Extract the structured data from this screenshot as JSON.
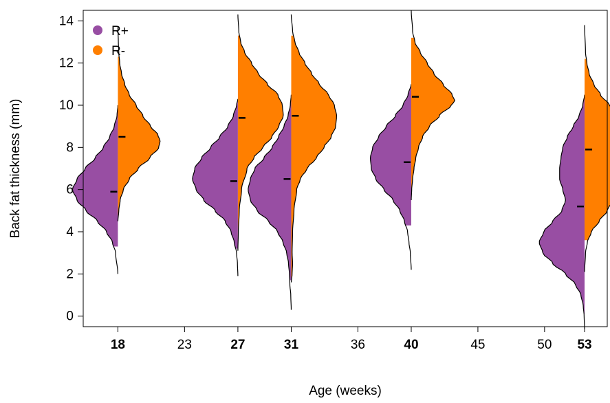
{
  "chart_data": {
    "type": "split-violin",
    "title": "",
    "xlabel": "Age (weeks)",
    "ylabel": "Back fat thickness (mm)",
    "xlim": [
      15.4,
      54.7
    ],
    "ylim": [
      -0.5,
      14.5
    ],
    "grid": false,
    "legend_position": "top-left",
    "x_ticks": [
      {
        "value": 18,
        "label": "18",
        "bold": true
      },
      {
        "value": 23,
        "label": "23",
        "bold": false
      },
      {
        "value": 27,
        "label": "27",
        "bold": true
      },
      {
        "value": 31,
        "label": "31",
        "bold": true
      },
      {
        "value": 36,
        "label": "36",
        "bold": false
      },
      {
        "value": 40,
        "label": "40",
        "bold": true
      },
      {
        "value": 45,
        "label": "45",
        "bold": false
      },
      {
        "value": 50,
        "label": "50",
        "bold": false
      },
      {
        "value": 53,
        "label": "53",
        "bold": true
      }
    ],
    "y_ticks": [
      0,
      2,
      4,
      6,
      8,
      10,
      12,
      14
    ],
    "series": [
      {
        "name": "R+",
        "color": "#984ea3",
        "side": "left"
      },
      {
        "name": "R-",
        "color": "#ff7f00",
        "side": "right"
      }
    ],
    "violins": [
      {
        "age": 18,
        "r_plus": {
          "mean": 5.9,
          "fill_range": [
            3.3,
            9.9
          ],
          "line_range": [
            2.0,
            10.0
          ],
          "density": [
            [
              2.0,
              0.0
            ],
            [
              3.0,
              0.05
            ],
            [
              3.5,
              0.12
            ],
            [
              4.0,
              0.25
            ],
            [
              4.5,
              0.45
            ],
            [
              5.0,
              0.7
            ],
            [
              5.5,
              0.9
            ],
            [
              6.0,
              1.0
            ],
            [
              6.5,
              0.9
            ],
            [
              7.0,
              0.72
            ],
            [
              7.5,
              0.5
            ],
            [
              8.0,
              0.32
            ],
            [
              8.5,
              0.18
            ],
            [
              9.0,
              0.08
            ],
            [
              9.5,
              0.02
            ],
            [
              10.0,
              0.0
            ]
          ]
        },
        "r_minus": {
          "mean": 8.5,
          "fill_range": [
            4.6,
            12.3
          ],
          "line_range": [
            4.5,
            13.7
          ],
          "density": [
            [
              4.5,
              0.0
            ],
            [
              5.0,
              0.02
            ],
            [
              5.5,
              0.05
            ],
            [
              6.0,
              0.12
            ],
            [
              6.5,
              0.25
            ],
            [
              7.0,
              0.45
            ],
            [
              7.5,
              0.7
            ],
            [
              8.0,
              0.9
            ],
            [
              8.3,
              0.93
            ],
            [
              8.6,
              0.88
            ],
            [
              9.0,
              0.72
            ],
            [
              9.5,
              0.55
            ],
            [
              10.0,
              0.4
            ],
            [
              10.5,
              0.25
            ],
            [
              11.0,
              0.15
            ],
            [
              11.5,
              0.08
            ],
            [
              12.0,
              0.04
            ],
            [
              12.5,
              0.02
            ],
            [
              13.0,
              0.01
            ],
            [
              13.7,
              0.0
            ]
          ]
        }
      },
      {
        "age": 27,
        "r_plus": {
          "mean": 6.4,
          "fill_range": [
            3.2,
            10.2
          ],
          "line_range": [
            1.9,
            10.3
          ],
          "density": [
            [
              1.9,
              0.0
            ],
            [
              2.5,
              0.01
            ],
            [
              3.0,
              0.03
            ],
            [
              3.5,
              0.08
            ],
            [
              4.0,
              0.15
            ],
            [
              4.5,
              0.28
            ],
            [
              5.0,
              0.5
            ],
            [
              5.5,
              0.75
            ],
            [
              6.0,
              0.92
            ],
            [
              6.5,
              1.0
            ],
            [
              7.0,
              0.95
            ],
            [
              7.5,
              0.8
            ],
            [
              8.0,
              0.6
            ],
            [
              8.5,
              0.4
            ],
            [
              9.0,
              0.22
            ],
            [
              9.5,
              0.1
            ],
            [
              10.0,
              0.03
            ],
            [
              10.3,
              0.0
            ]
          ]
        },
        "r_minus": {
          "mean": 9.4,
          "fill_range": [
            3.2,
            13.3
          ],
          "line_range": [
            3.1,
            14.3
          ],
          "density": [
            [
              3.1,
              0.0
            ],
            [
              4.0,
              0.01
            ],
            [
              5.0,
              0.03
            ],
            [
              6.0,
              0.08
            ],
            [
              7.0,
              0.2
            ],
            [
              7.5,
              0.35
            ],
            [
              8.0,
              0.55
            ],
            [
              8.5,
              0.75
            ],
            [
              9.0,
              0.9
            ],
            [
              9.5,
              1.0
            ],
            [
              10.0,
              0.98
            ],
            [
              10.5,
              0.88
            ],
            [
              11.0,
              0.65
            ],
            [
              11.5,
              0.45
            ],
            [
              12.0,
              0.3
            ],
            [
              12.5,
              0.15
            ],
            [
              13.0,
              0.06
            ],
            [
              13.5,
              0.02
            ],
            [
              14.3,
              0.0
            ]
          ]
        }
      },
      {
        "age": 31,
        "r_plus": {
          "mean": 6.5,
          "fill_range": [
            1.7,
            10.5
          ],
          "line_range": [
            0.3,
            10.5
          ],
          "density": [
            [
              0.3,
              0.0
            ],
            [
              1.0,
              0.01
            ],
            [
              1.5,
              0.03
            ],
            [
              2.0,
              0.04
            ],
            [
              2.5,
              0.06
            ],
            [
              3.0,
              0.1
            ],
            [
              3.5,
              0.18
            ],
            [
              4.0,
              0.3
            ],
            [
              4.5,
              0.5
            ],
            [
              5.0,
              0.75
            ],
            [
              5.5,
              0.9
            ],
            [
              6.0,
              0.95
            ],
            [
              6.5,
              0.9
            ],
            [
              7.0,
              0.8
            ],
            [
              7.5,
              0.6
            ],
            [
              8.0,
              0.42
            ],
            [
              8.5,
              0.28
            ],
            [
              9.0,
              0.16
            ],
            [
              9.5,
              0.07
            ],
            [
              10.0,
              0.02
            ],
            [
              10.5,
              0.0
            ]
          ]
        },
        "r_minus": {
          "mean": 9.5,
          "fill_range": [
            1.7,
            13.3
          ],
          "line_range": [
            1.6,
            14.3
          ],
          "density": [
            [
              1.6,
              0.0
            ],
            [
              2.0,
              0.02
            ],
            [
              2.5,
              0.03
            ],
            [
              3.0,
              0.02
            ],
            [
              4.0,
              0.03
            ],
            [
              5.0,
              0.06
            ],
            [
              6.0,
              0.12
            ],
            [
              6.5,
              0.2
            ],
            [
              7.0,
              0.35
            ],
            [
              7.5,
              0.55
            ],
            [
              8.0,
              0.72
            ],
            [
              8.5,
              0.88
            ],
            [
              9.0,
              0.98
            ],
            [
              9.5,
              1.0
            ],
            [
              10.0,
              0.95
            ],
            [
              10.5,
              0.82
            ],
            [
              11.0,
              0.62
            ],
            [
              11.5,
              0.45
            ],
            [
              12.0,
              0.3
            ],
            [
              12.5,
              0.17
            ],
            [
              13.0,
              0.08
            ],
            [
              13.5,
              0.03
            ],
            [
              14.3,
              0.0
            ]
          ]
        }
      },
      {
        "age": 40,
        "r_plus": {
          "mean": 7.3,
          "fill_range": [
            4.3,
            10.9
          ],
          "line_range": [
            2.2,
            11.0
          ],
          "density": [
            [
              2.2,
              0.0
            ],
            [
              3.0,
              0.02
            ],
            [
              3.5,
              0.05
            ],
            [
              4.0,
              0.08
            ],
            [
              4.5,
              0.15
            ],
            [
              5.0,
              0.25
            ],
            [
              5.5,
              0.4
            ],
            [
              6.0,
              0.6
            ],
            [
              6.5,
              0.78
            ],
            [
              7.0,
              0.88
            ],
            [
              7.5,
              0.9
            ],
            [
              8.0,
              0.85
            ],
            [
              8.5,
              0.72
            ],
            [
              9.0,
              0.55
            ],
            [
              9.5,
              0.35
            ],
            [
              10.0,
              0.18
            ],
            [
              10.5,
              0.07
            ],
            [
              11.0,
              0.0
            ]
          ]
        },
        "r_minus": {
          "mean": 10.4,
          "fill_range": [
            5.5,
            13.2
          ],
          "line_range": [
            5.5,
            14.5
          ],
          "density": [
            [
              5.5,
              0.0
            ],
            [
              6.0,
              0.01
            ],
            [
              6.5,
              0.03
            ],
            [
              7.0,
              0.06
            ],
            [
              7.5,
              0.1
            ],
            [
              8.0,
              0.16
            ],
            [
              8.5,
              0.25
            ],
            [
              9.0,
              0.4
            ],
            [
              9.5,
              0.62
            ],
            [
              10.0,
              0.88
            ],
            [
              10.2,
              0.96
            ],
            [
              10.5,
              0.9
            ],
            [
              11.0,
              0.7
            ],
            [
              11.5,
              0.5
            ],
            [
              12.0,
              0.35
            ],
            [
              12.5,
              0.2
            ],
            [
              13.0,
              0.08
            ],
            [
              13.5,
              0.03
            ],
            [
              14.5,
              0.0
            ]
          ]
        }
      },
      {
        "age": 53,
        "r_plus": {
          "mean": 5.2,
          "fill_range": [
            0.1,
            10.5
          ],
          "line_range": [
            -0.6,
            10.5
          ],
          "density": [
            [
              -0.6,
              0.0
            ],
            [
              0.0,
              0.01
            ],
            [
              0.5,
              0.03
            ],
            [
              1.0,
              0.08
            ],
            [
              1.5,
              0.2
            ],
            [
              2.0,
              0.42
            ],
            [
              2.5,
              0.7
            ],
            [
              3.0,
              0.92
            ],
            [
              3.5,
              1.0
            ],
            [
              4.0,
              0.9
            ],
            [
              4.5,
              0.7
            ],
            [
              5.0,
              0.5
            ],
            [
              5.5,
              0.42
            ],
            [
              6.0,
              0.48
            ],
            [
              6.5,
              0.55
            ],
            [
              7.0,
              0.55
            ],
            [
              7.5,
              0.52
            ],
            [
              8.0,
              0.48
            ],
            [
              8.5,
              0.38
            ],
            [
              9.0,
              0.25
            ],
            [
              9.5,
              0.12
            ],
            [
              10.0,
              0.04
            ],
            [
              10.5,
              0.0
            ]
          ]
        },
        "r_minus": {
          "mean": 7.9,
          "fill_range": [
            3.6,
            12.2
          ],
          "line_range": [
            2.1,
            13.8
          ],
          "density": [
            [
              2.1,
              0.0
            ],
            [
              3.0,
              0.02
            ],
            [
              3.5,
              0.06
            ],
            [
              4.0,
              0.15
            ],
            [
              4.5,
              0.32
            ],
            [
              5.0,
              0.5
            ],
            [
              5.5,
              0.62
            ],
            [
              6.0,
              0.7
            ],
            [
              6.5,
              0.75
            ],
            [
              7.0,
              0.8
            ],
            [
              7.5,
              0.85
            ],
            [
              8.0,
              0.88
            ],
            [
              8.5,
              0.88
            ],
            [
              9.0,
              0.85
            ],
            [
              9.5,
              0.75
            ],
            [
              10.0,
              0.55
            ],
            [
              10.5,
              0.35
            ],
            [
              11.0,
              0.2
            ],
            [
              11.5,
              0.1
            ],
            [
              12.0,
              0.05
            ],
            [
              12.5,
              0.02
            ],
            [
              13.8,
              0.0
            ]
          ]
        }
      }
    ]
  }
}
